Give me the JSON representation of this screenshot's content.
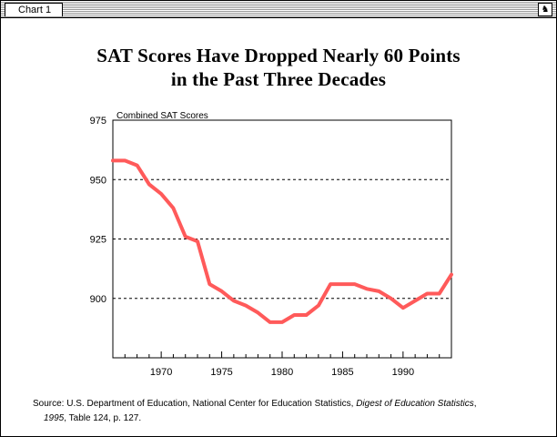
{
  "window": {
    "tab_label": "Chart 1",
    "bell_icon": "bell-icon"
  },
  "chart_data": {
    "type": "line",
    "title_lines": [
      "SAT Scores Have Dropped Nearly 60 Points",
      "in the Past Three Decades"
    ],
    "ylabel": "Combined SAT Scores",
    "xlabel": "",
    "xlim": [
      1966,
      1994
    ],
    "ylim": [
      875,
      975
    ],
    "x_ticks": [
      1970,
      1975,
      1980,
      1985,
      1990
    ],
    "y_ticks": [
      975,
      950,
      925,
      900
    ],
    "grid_y": [
      950,
      925,
      900
    ],
    "line_color": "#ff5a5a",
    "series": [
      {
        "x": [
          1966,
          1967,
          1968,
          1969,
          1970,
          1971,
          1972,
          1973,
          1974,
          1975,
          1976,
          1977,
          1978,
          1979,
          1980,
          1981,
          1982,
          1983,
          1984,
          1985,
          1986,
          1987,
          1988,
          1989,
          1990,
          1991,
          1992,
          1993,
          1994
        ],
        "y": [
          958,
          958,
          956,
          948,
          944,
          938,
          926,
          924,
          906,
          903,
          899,
          897,
          894,
          890,
          890,
          893,
          893,
          897,
          906,
          906,
          906,
          904,
          903,
          900,
          896,
          899,
          902,
          902,
          910
        ]
      }
    ]
  },
  "source": {
    "prefix": "Source: U.S. Department of Education, National Center for Education Statistics, ",
    "title_italic_a": "Digest of Education Statistics",
    "mid": ",",
    "title_italic_b": "1995",
    "suffix": ", Table 124, p. 127."
  }
}
